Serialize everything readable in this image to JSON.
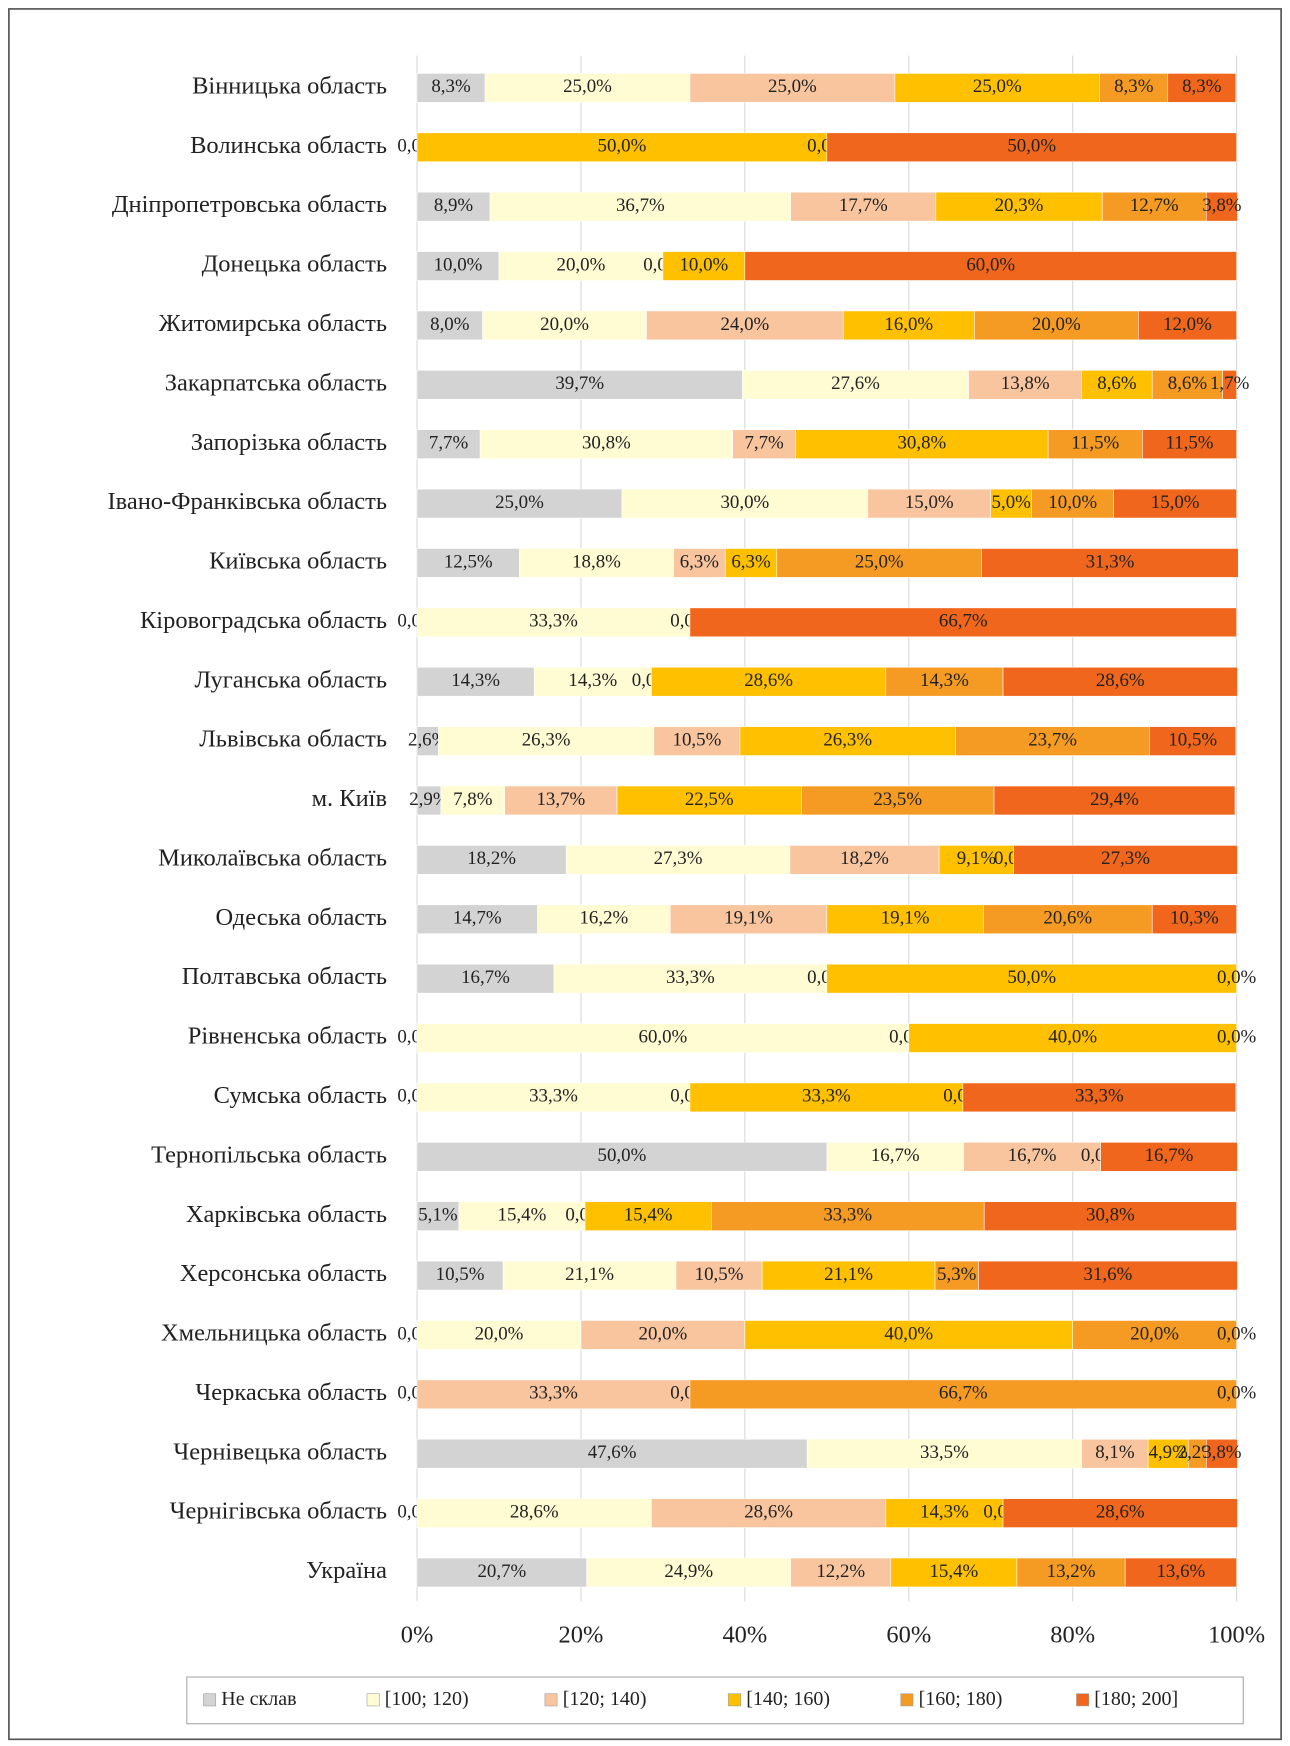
{
  "chart_data": {
    "type": "bar",
    "orientation": "horizontal",
    "stacked": true,
    "categories": [
      "Вінницька область",
      "Волинська область",
      "Дніпропетровська область",
      "Донецька область",
      "Житомирська область",
      "Закарпатська область",
      "Запорізька область",
      "Івано-Франківська область",
      "Київська область",
      "Кіровоградська область",
      "Луганська область",
      "Львівська область",
      "м. Київ",
      "Миколаївська область",
      "Одеська область",
      "Полтавська область",
      "Рівненська область",
      "Сумська область",
      "Тернопільська область",
      "Харківська область",
      "Херсонська область",
      "Хмельницька область",
      "Черкаська область",
      "Чернівецька область",
      "Чернігівська область",
      "Україна"
    ],
    "series": [
      {
        "name": "Не склав",
        "color": "#d3d3d3",
        "values": [
          8.3,
          0.0,
          8.9,
          10.0,
          8.0,
          39.7,
          7.7,
          25.0,
          12.5,
          0.0,
          14.3,
          2.6,
          2.9,
          18.2,
          14.7,
          16.7,
          0.0,
          0.0,
          50.0,
          5.1,
          10.5,
          0.0,
          0.0,
          47.6,
          0.0,
          20.7
        ],
        "value_labels": [
          "8,3%",
          "0,0%",
          "8,9%",
          "10,0%",
          "8,0%",
          "39,7%",
          "7,7%",
          "25,0%",
          "12,5%",
          "0,0%",
          "14,3%",
          "2,6%",
          "2,9%",
          "18,2%",
          "14,7%",
          "16,7%",
          "0,0%",
          "0,0%",
          "50,0%",
          "5,1%",
          "10,5%",
          "0,0%",
          "0,0%",
          "47,6%",
          "0,0%",
          "20,7%"
        ]
      },
      {
        "name": "[100; 120)",
        "color": "#fffbd2",
        "values": [
          25.0,
          null,
          36.7,
          20.0,
          20.0,
          27.6,
          30.8,
          30.0,
          18.8,
          33.3,
          14.3,
          26.3,
          7.8,
          27.3,
          16.2,
          33.3,
          60.0,
          33.3,
          16.7,
          15.4,
          21.1,
          20.0,
          null,
          33.5,
          28.6,
          24.9
        ],
        "value_labels": [
          "25,0%",
          null,
          "36,7%",
          "20,0%",
          "20,0%",
          "27,6%",
          "30,8%",
          "30,0%",
          "18,8%",
          "33,3%",
          "14,3%",
          "26,3%",
          "7,8%",
          "27,3%",
          "16,2%",
          "33,3%",
          "60,0%",
          "33,3%",
          "16,7%",
          "15,4%",
          "21,1%",
          "20,0%",
          null,
          "33,5%",
          "28,6%",
          "24,9%"
        ]
      },
      {
        "name": "[120; 140)",
        "color": "#f8c59e",
        "values": [
          25.0,
          null,
          17.7,
          0.0,
          24.0,
          13.8,
          7.7,
          15.0,
          6.3,
          0.0,
          0.0,
          10.5,
          13.7,
          18.2,
          19.1,
          0.0,
          0.0,
          0.0,
          16.7,
          0.0,
          10.5,
          20.0,
          33.3,
          8.1,
          28.6,
          12.2
        ],
        "value_labels": [
          "25,0%",
          null,
          "17,7%",
          "0,0%",
          "24,0%",
          "13,8%",
          "7,7%",
          "15,0%",
          "6,3%",
          "0,0%",
          "0,0%",
          "10,5%",
          "13,7%",
          "18,2%",
          "19,1%",
          "0,0%",
          "0,0%",
          "0,0%",
          "16,7%",
          "0,0%",
          "10,5%",
          "20,0%",
          "33,3%",
          "8,1%",
          "28,6%",
          "12,2%"
        ]
      },
      {
        "name": "[140; 160)",
        "color": "#ffc000",
        "values": [
          25.0,
          50.0,
          20.3,
          10.0,
          16.0,
          8.6,
          30.8,
          5.0,
          6.3,
          null,
          28.6,
          26.3,
          22.5,
          9.1,
          19.1,
          50.0,
          40.0,
          33.3,
          null,
          15.4,
          21.1,
          40.0,
          0.0,
          4.9,
          14.3,
          15.4
        ],
        "value_labels": [
          "25,0%",
          "50,0%",
          "20,3%",
          "10,0%",
          "16,0%",
          "8,6%",
          "30,8%",
          "5,0%",
          "6,3%",
          null,
          "28,6%",
          "26,3%",
          "22,5%",
          "9,1%",
          "19,1%",
          "50,0%",
          "40,0%",
          "33,3%",
          null,
          "15,4%",
          "21,1%",
          "40,0%",
          "0,0%",
          "4,9%",
          "14,3%",
          "15,4%"
        ]
      },
      {
        "name": "[160; 180)",
        "color": "#f59a23",
        "values": [
          8.3,
          0.0,
          12.7,
          null,
          20.0,
          8.6,
          11.5,
          10.0,
          25.0,
          null,
          14.3,
          23.7,
          23.5,
          0.0,
          20.6,
          null,
          null,
          0.0,
          0.0,
          33.3,
          5.3,
          20.0,
          66.7,
          2.2,
          0.0,
          13.2
        ],
        "value_labels": [
          "8,3%",
          "0,0%",
          "12,7%",
          null,
          "20,0%",
          "8,6%",
          "11,5%",
          "10,0%",
          "25,0%",
          null,
          "14,3%",
          "23,7%",
          "23,5%",
          "0,0%",
          "20,6%",
          null,
          null,
          "0,0%",
          "0,0%",
          "33,3%",
          "5,3%",
          "20,0%",
          "66,7%",
          "2,2%",
          "0,0%",
          "13,2%"
        ]
      },
      {
        "name": "[180; 200]",
        "color": "#f0661c",
        "values": [
          8.3,
          50.0,
          3.8,
          60.0,
          12.0,
          1.7,
          11.5,
          15.0,
          31.3,
          66.7,
          28.6,
          10.5,
          29.4,
          27.3,
          10.3,
          0.0,
          0.0,
          33.3,
          16.7,
          30.8,
          31.6,
          0.0,
          0.0,
          3.8,
          28.6,
          13.6
        ],
        "value_labels": [
          "8,3%",
          "50,0%",
          "3,8%",
          "60,0%",
          "12,0%",
          "1,7%",
          "11,5%",
          "15,0%",
          "31,3%",
          "66,7%",
          "28,6%",
          "10,5%",
          "29,4%",
          "27,3%",
          "10,3%",
          "0,0%",
          "0,0%",
          "33,3%",
          "16,7%",
          "30,8%",
          "31,6%",
          "0,0%",
          "0,0%",
          "3,8%",
          "28,6%",
          "13,6%"
        ]
      }
    ],
    "xlim": [
      0,
      100
    ],
    "xticks": [
      {
        "value": 0,
        "label": "0%"
      },
      {
        "value": 20,
        "label": "20%"
      },
      {
        "value": 40,
        "label": "40%"
      },
      {
        "value": 60,
        "label": "60%"
      },
      {
        "value": 80,
        "label": "80%"
      },
      {
        "value": 100,
        "label": "100%"
      }
    ],
    "grid": true,
    "legend": "bottom"
  }
}
